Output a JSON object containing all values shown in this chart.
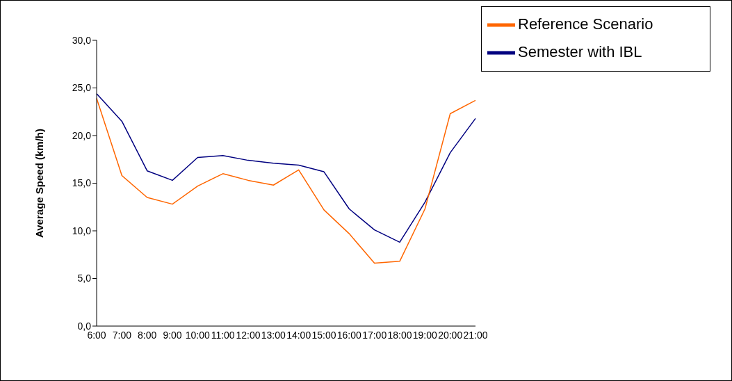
{
  "chart_data": {
    "type": "line",
    "ylabel": "Average Speed (km/h)",
    "categories": [
      "6:00",
      "7:00",
      "8:00",
      "9:00",
      "10:00",
      "11:00",
      "12:00",
      "13:00",
      "14:00",
      "15:00",
      "16:00",
      "17:00",
      "18:00",
      "19:00",
      "20:00",
      "21:00"
    ],
    "series": [
      {
        "name": "Semester with IBL",
        "color": "#000080",
        "values": [
          24.4,
          21.5,
          16.3,
          15.3,
          17.7,
          17.9,
          17.4,
          17.1,
          16.9,
          16.2,
          12.3,
          10.1,
          8.8,
          13.0,
          18.2,
          21.8
        ]
      },
      {
        "name": "Reference Scenario",
        "color": "#ff6600",
        "values": [
          23.9,
          15.8,
          13.5,
          12.8,
          14.7,
          16.0,
          15.3,
          14.8,
          16.4,
          12.2,
          9.7,
          6.6,
          6.8,
          12.3,
          22.3,
          23.7
        ]
      }
    ],
    "ylim": [
      0,
      30
    ],
    "yticks": [
      {
        "value": 0,
        "label": "0,0"
      },
      {
        "value": 5,
        "label": "5,0"
      },
      {
        "value": 10,
        "label": "10,0"
      },
      {
        "value": 15,
        "label": "15,0"
      },
      {
        "value": 20,
        "label": "20,0"
      },
      {
        "value": 25,
        "label": "25,0"
      },
      {
        "value": 30,
        "label": "30,0"
      }
    ],
    "grid": false,
    "legend": "top right",
    "marker": "none",
    "line_style": "solid"
  }
}
